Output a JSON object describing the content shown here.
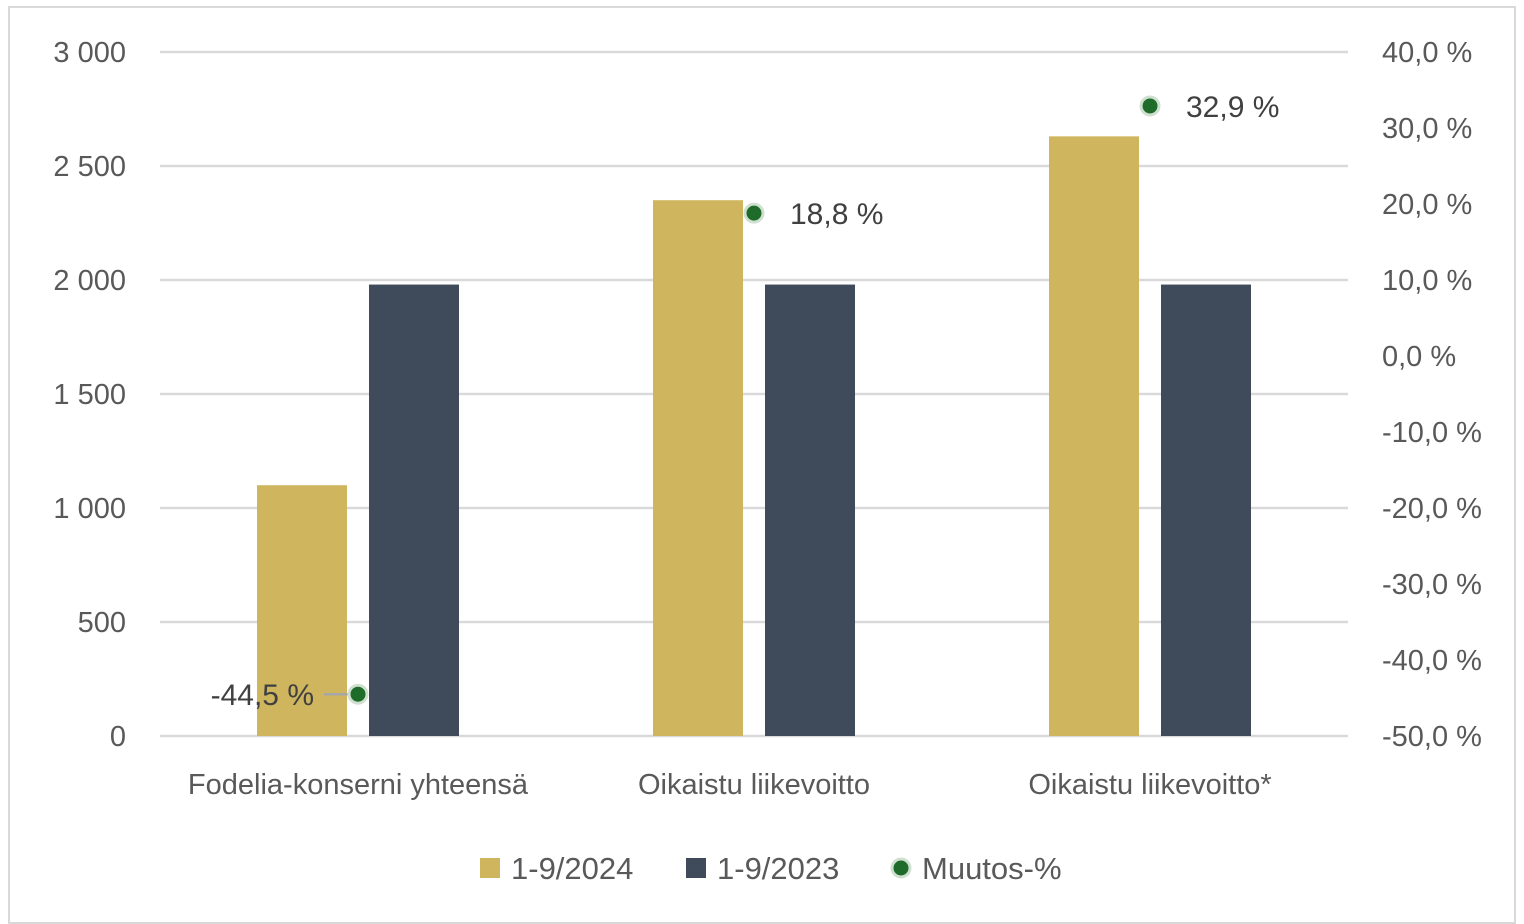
{
  "chart_data": {
    "type": "bar",
    "categories": [
      "Fodelia-konserni yhteensä",
      "Oikaistu liikevoitto",
      "Oikaistu liikevoitto*"
    ],
    "series": [
      {
        "name": "1-9/2024",
        "axis": "left",
        "kind": "bar",
        "color": "#ceb55e",
        "values": [
          1100,
          2350,
          2630
        ]
      },
      {
        "name": "1-9/2023",
        "axis": "left",
        "kind": "bar",
        "color": "#3f4b5b",
        "values": [
          1980,
          1980,
          1980
        ]
      },
      {
        "name": "Muutos-%",
        "axis": "right",
        "kind": "scatter",
        "color": "#1e6b2a",
        "values": [
          -44.5,
          18.8,
          32.9
        ],
        "labels": [
          "-44,5 %",
          "18,8 %",
          "32,9 %"
        ]
      }
    ],
    "y_left": {
      "ylim": [
        0,
        3000
      ],
      "ticks": [
        0,
        500,
        1000,
        1500,
        2000,
        2500,
        3000
      ],
      "tick_labels": [
        "0",
        "500",
        "1 000",
        "1 500",
        "2 000",
        "2 500",
        "3 000"
      ]
    },
    "y_right": {
      "ylim": [
        -50,
        40
      ],
      "ticks": [
        -50,
        -40,
        -30,
        -20,
        -10,
        0,
        10,
        20,
        30,
        40
      ],
      "tick_labels": [
        "-50,0 %",
        "-40,0 %",
        "-30,0 %",
        "-20,0 %",
        "-10,0 %",
        "0,0 %",
        "10,0 %",
        "20,0 %",
        "30,0 %",
        "40,0 %"
      ]
    },
    "grid": true,
    "legend": {
      "position": "bottom",
      "entries": [
        "1-9/2024",
        "1-9/2023",
        "Muutos-%"
      ]
    },
    "gridline_color": "#d9d9d9"
  }
}
